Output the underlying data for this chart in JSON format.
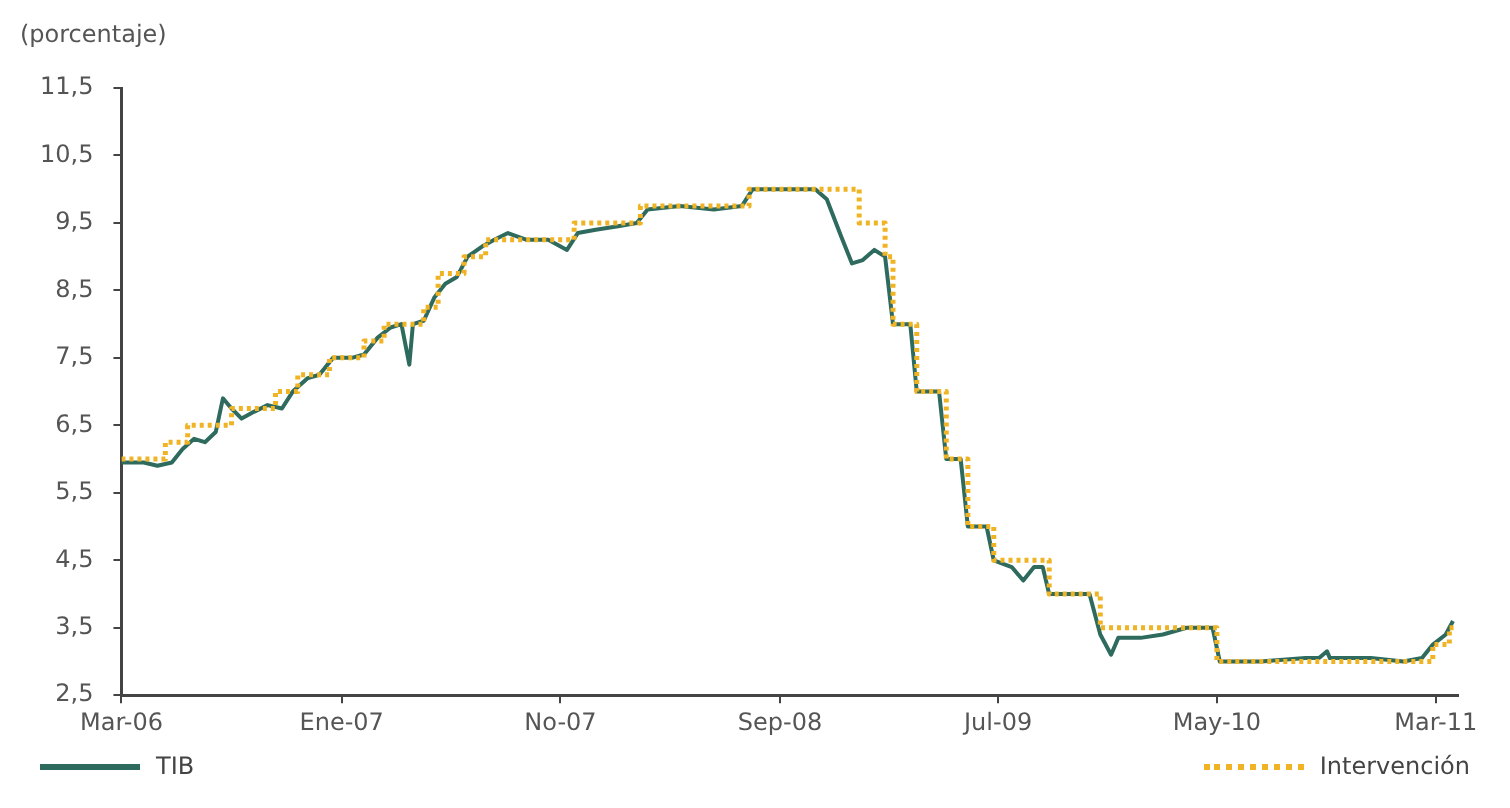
{
  "chart_data": {
    "type": "line",
    "ylabel": "(porcentaje)",
    "legend": "bottom",
    "ylim": [
      2.5,
      11.5
    ],
    "yticks": [
      {
        "value": 2.5,
        "label": "2,5"
      },
      {
        "value": 3.5,
        "label": "3,5"
      },
      {
        "value": 4.5,
        "label": "4,5"
      },
      {
        "value": 5.5,
        "label": "5,5"
      },
      {
        "value": 6.5,
        "label": "6,5"
      },
      {
        "value": 7.5,
        "label": "7,5"
      },
      {
        "value": 8.5,
        "label": "8,5"
      },
      {
        "value": 9.5,
        "label": "9,5"
      },
      {
        "value": 10.5,
        "label": "10,5"
      },
      {
        "value": 11.5,
        "label": "11,5"
      }
    ],
    "xlim": [
      "2006-03-01",
      "2011-04-01"
    ],
    "xticks": [
      {
        "value": "2006-03-01",
        "label": "Mar-06"
      },
      {
        "value": "2007-01-01",
        "label": "Ene-07"
      },
      {
        "value": "2007-11-01",
        "label": "No-07"
      },
      {
        "value": "2008-09-01",
        "label": "Sep-08"
      },
      {
        "value": "2009-07-01",
        "label": "Jul-09"
      },
      {
        "value": "2010-05-01",
        "label": "May-10"
      },
      {
        "value": "2011-03-01",
        "label": "Mar-11"
      }
    ],
    "series": [
      {
        "name": "TIB",
        "type": "line",
        "color": "#2e6b5e",
        "line_style": "solid",
        "x": [
          "2006-03-01",
          "2006-04-01",
          "2006-04-20",
          "2006-05-10",
          "2006-05-25",
          "2006-06-10",
          "2006-06-25",
          "2006-07-10",
          "2006-07-20",
          "2006-08-01",
          "2006-08-15",
          "2006-09-01",
          "2006-09-20",
          "2006-10-10",
          "2006-10-25",
          "2006-11-15",
          "2006-12-01",
          "2006-12-20",
          "2007-01-15",
          "2007-02-01",
          "2007-02-20",
          "2007-03-10",
          "2007-03-25",
          "2007-04-05",
          "2007-04-10",
          "2007-04-25",
          "2007-05-10",
          "2007-05-25",
          "2007-06-10",
          "2007-06-25",
          "2007-07-15",
          "2007-08-01",
          "2007-08-20",
          "2007-09-15",
          "2007-10-15",
          "2007-11-10",
          "2007-11-25",
          "2007-12-20",
          "2008-01-20",
          "2008-02-15",
          "2008-03-01",
          "2008-04-15",
          "2008-06-01",
          "2008-07-10",
          "2008-07-25",
          "2008-09-01",
          "2008-10-20",
          "2008-11-05",
          "2008-11-25",
          "2008-12-10",
          "2008-12-25",
          "2009-01-10",
          "2009-01-25",
          "2009-02-05",
          "2009-03-01",
          "2009-03-10",
          "2009-04-10",
          "2009-04-20",
          "2009-05-10",
          "2009-05-20",
          "2009-06-15",
          "2009-06-25",
          "2009-07-20",
          "2009-08-05",
          "2009-08-20",
          "2009-09-01",
          "2009-09-10",
          "2009-10-15",
          "2009-11-05",
          "2009-11-20",
          "2009-12-05",
          "2009-12-15",
          "2010-01-15",
          "2010-02-15",
          "2010-03-20",
          "2010-04-25",
          "2010-05-05",
          "2010-07-01",
          "2010-09-01",
          "2010-09-20",
          "2010-10-01",
          "2010-10-05",
          "2010-12-01",
          "2011-01-15",
          "2011-02-10",
          "2011-02-25",
          "2011-03-15",
          "2011-03-25"
        ],
        "values": [
          5.95,
          5.95,
          5.9,
          5.95,
          6.15,
          6.3,
          6.25,
          6.4,
          6.9,
          6.75,
          6.6,
          6.7,
          6.8,
          6.75,
          7.0,
          7.2,
          7.25,
          7.5,
          7.5,
          7.55,
          7.8,
          7.95,
          8.0,
          7.4,
          8.0,
          8.05,
          8.4,
          8.6,
          8.7,
          9.0,
          9.15,
          9.25,
          9.35,
          9.25,
          9.25,
          9.1,
          9.35,
          9.4,
          9.45,
          9.5,
          9.7,
          9.75,
          9.7,
          9.75,
          10.0,
          10.0,
          10.0,
          9.85,
          9.3,
          8.9,
          8.95,
          9.1,
          9.0,
          8.0,
          8.0,
          7.0,
          7.0,
          6.0,
          6.0,
          5.0,
          5.0,
          4.5,
          4.4,
          4.2,
          4.4,
          4.4,
          4.0,
          4.0,
          4.0,
          3.4,
          3.1,
          3.35,
          3.35,
          3.4,
          3.5,
          3.5,
          3.0,
          3.0,
          3.05,
          3.05,
          3.15,
          3.05,
          3.05,
          3.0,
          3.05,
          3.25,
          3.4,
          3.6
        ]
      },
      {
        "name": "Intervención",
        "type": "step",
        "color": "#f0b323",
        "line_style": "dotted",
        "x": [
          "2006-03-01",
          "2006-05-01",
          "2006-06-01",
          "2006-08-01",
          "2006-10-01",
          "2006-11-01",
          "2006-12-15",
          "2007-02-01",
          "2007-03-01",
          "2007-04-25",
          "2007-05-15",
          "2007-06-20",
          "2007-07-20",
          "2007-11-20",
          "2008-02-20",
          "2008-07-20",
          "2008-12-20",
          "2009-01-25",
          "2009-02-05",
          "2009-03-10",
          "2009-04-20",
          "2009-05-20",
          "2009-06-25",
          "2009-09-10",
          "2009-11-20",
          "2010-05-01",
          "2011-02-25",
          "2011-03-20",
          "2011-03-31"
        ],
        "values": [
          6.0,
          6.25,
          6.5,
          6.75,
          7.0,
          7.25,
          7.5,
          7.75,
          8.0,
          8.25,
          8.75,
          9.0,
          9.25,
          9.5,
          9.75,
          10.0,
          9.5,
          9.0,
          8.0,
          7.0,
          6.0,
          5.0,
          4.5,
          4.0,
          3.5,
          3.0,
          3.25,
          3.5,
          3.5
        ]
      }
    ]
  }
}
